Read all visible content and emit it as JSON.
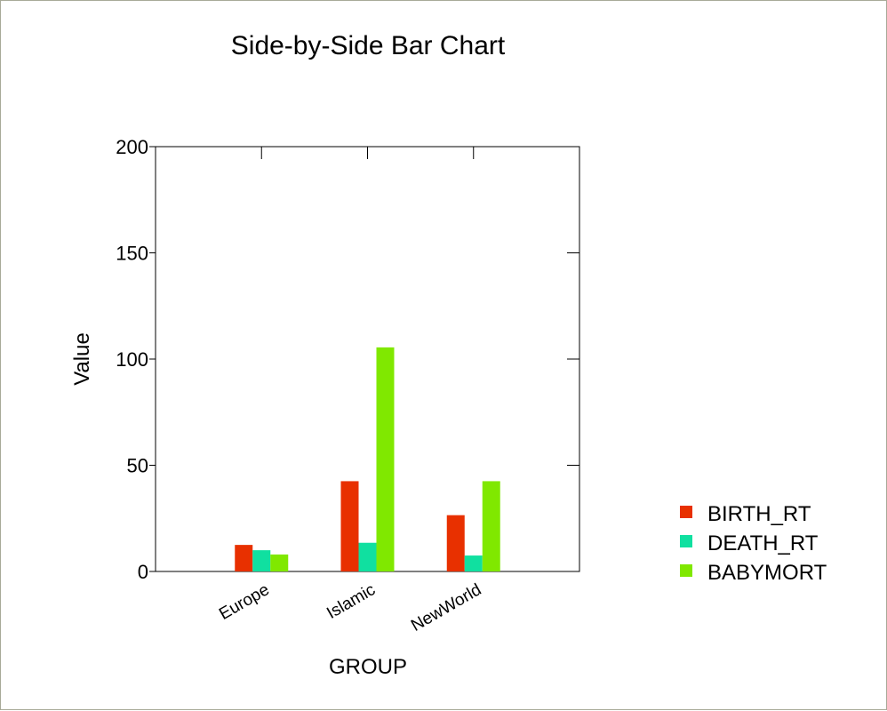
{
  "chart_data": {
    "type": "bar",
    "title": "Side-by-Side Bar Chart",
    "xlabel": "GROUP",
    "ylabel": "Value",
    "ylim": [
      0,
      200
    ],
    "yticks": [
      0,
      50,
      100,
      150,
      200
    ],
    "categories": [
      "Europe",
      "Islamic",
      "NewWorld"
    ],
    "series": [
      {
        "name": "BIRTH_RT",
        "color": "#e83000",
        "values": [
          12.5,
          42.5,
          26.5
        ]
      },
      {
        "name": "DEATH_RT",
        "color": "#10e0a0",
        "values": [
          10,
          13.5,
          7.5
        ]
      },
      {
        "name": "BABYMORT",
        "color": "#80e800",
        "values": [
          8,
          105.5,
          42.5
        ]
      }
    ],
    "grid": false,
    "legend_position": "right"
  }
}
